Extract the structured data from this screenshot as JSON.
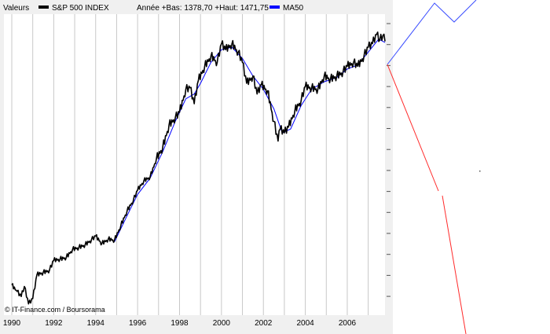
{
  "legend": {
    "prefix": "Valeurs",
    "series_label": "S&P 500 INDEX",
    "stats": "Année +Bas: 1378,70 +Haut: 1471,75",
    "ma_label": "MA50"
  },
  "credit": "© IT-Finance.com / Boursorama",
  "colors": {
    "price": "#000000",
    "ma": "#0000ff",
    "overlay_blue": "#3a4dff",
    "overlay_red": "#ff2a2a",
    "grid": "#c8c8c8",
    "frame_bg": "#f0f0f0"
  },
  "chart_data": {
    "type": "line",
    "title": "",
    "xlabel": "",
    "ylabel": "",
    "x_tick_labels": [
      "1990",
      "1992",
      "1994",
      "1996",
      "1998",
      "2000",
      "2002",
      "2004",
      "2006"
    ],
    "xlim": [
      1990.0,
      2007.8
    ],
    "y_scale": "log",
    "ylim": [
      300,
      1700
    ],
    "grid": true,
    "legend_position": "top",
    "series": [
      {
        "name": "S&P 500 INDEX",
        "x": [
          1990.0,
          1990.25,
          1990.45,
          1990.6,
          1990.8,
          1991.0,
          1991.2,
          1991.5,
          1991.8,
          1992.0,
          1992.3,
          1992.6,
          1992.9,
          1993.2,
          1993.5,
          1993.8,
          1994.0,
          1994.3,
          1994.6,
          1994.9,
          1995.2,
          1995.5,
          1995.8,
          1996.0,
          1996.3,
          1996.6,
          1996.9,
          1997.2,
          1997.5,
          1997.8,
          1998.0,
          1998.3,
          1998.5,
          1998.7,
          1998.9,
          1999.2,
          1999.5,
          1999.8,
          2000.0,
          2000.2,
          2000.5,
          2000.8,
          2001.0,
          2001.2,
          2001.5,
          2001.7,
          2001.9,
          2002.2,
          2002.5,
          2002.7,
          2002.8,
          2003.0,
          2003.2,
          2003.5,
          2003.8,
          2004.0,
          2004.3,
          2004.6,
          2004.9,
          2005.2,
          2005.5,
          2005.8,
          2006.0,
          2006.3,
          2006.5,
          2006.8,
          2007.0,
          2007.2,
          2007.4,
          2007.55,
          2007.7,
          2007.8
        ],
        "values": [
          353,
          340,
          330,
          350,
          316,
          326,
          375,
          380,
          385,
          408,
          411,
          415,
          435,
          440,
          447,
          460,
          470,
          450,
          462,
          459,
          500,
          545,
          580,
          615,
          650,
          665,
          740,
          790,
          900,
          940,
          970,
          1110,
          1120,
          1020,
          1170,
          1270,
          1350,
          1300,
          1450,
          1400,
          1450,
          1380,
          1300,
          1150,
          1200,
          1080,
          1140,
          1100,
          920,
          820,
          880,
          860,
          890,
          980,
          1040,
          1130,
          1120,
          1110,
          1200,
          1180,
          1200,
          1230,
          1270,
          1300,
          1270,
          1350,
          1420,
          1450,
          1530,
          1480,
          1520,
          1470
        ]
      },
      {
        "name": "MA50",
        "x": [
          1994.9,
          1995.5,
          1996.0,
          1996.6,
          1997.2,
          1997.8,
          1998.3,
          1998.7,
          1999.0,
          1999.5,
          2000.0,
          2000.5,
          2001.0,
          2001.5,
          2002.0,
          2002.5,
          2002.9,
          2003.3,
          2003.8,
          2004.3,
          2004.9,
          2005.5,
          2006.0,
          2006.5,
          2007.0,
          2007.5,
          2007.8
        ],
        "values": [
          455,
          530,
          600,
          660,
          770,
          920,
          1050,
          1080,
          1150,
          1300,
          1400,
          1420,
          1330,
          1200,
          1110,
          990,
          860,
          880,
          1010,
          1110,
          1160,
          1190,
          1250,
          1280,
          1380,
          1490,
          1460
        ]
      }
    ]
  }
}
